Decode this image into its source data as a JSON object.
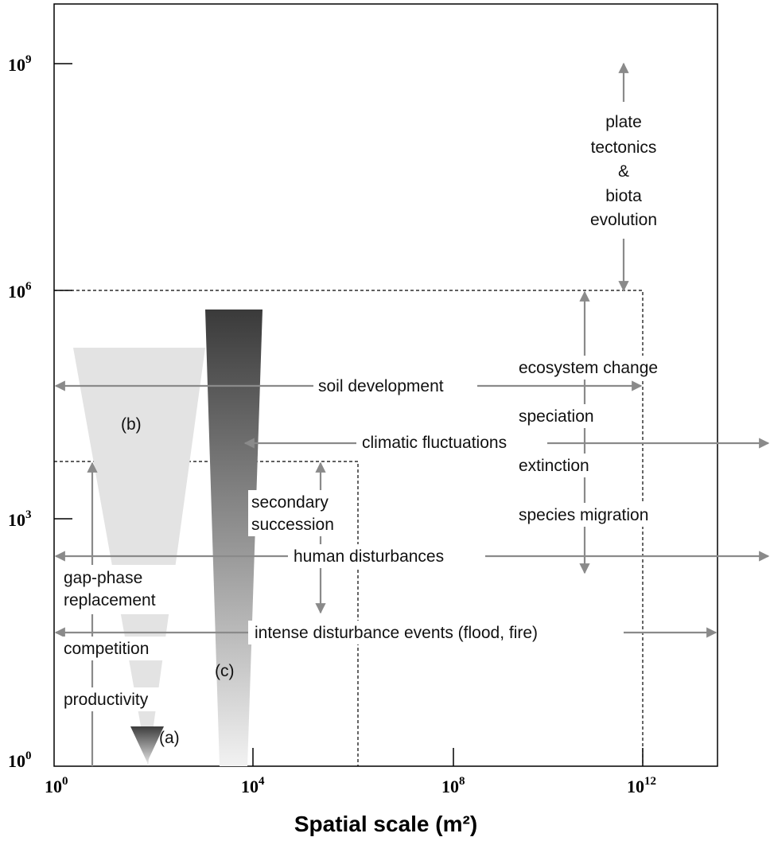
{
  "x_axis": {
    "title": "Spatial scale (m²)",
    "ticks": [
      {
        "base": "10",
        "exp": "0"
      },
      {
        "base": "10",
        "exp": "4"
      },
      {
        "base": "10",
        "exp": "8"
      },
      {
        "base": "10",
        "exp": "12"
      }
    ]
  },
  "y_axis": {
    "ticks": [
      {
        "base": "10",
        "exp": "0"
      },
      {
        "base": "10",
        "exp": "3"
      },
      {
        "base": "10",
        "exp": "6"
      },
      {
        "base": "10",
        "exp": "9"
      }
    ]
  },
  "labels": {
    "plate_line1": "plate",
    "plate_line2": "tectonics",
    "plate_line3": "&",
    "plate_line4": "biota",
    "plate_line5": "evolution",
    "ecosystem_change": "ecosystem change",
    "soil_development": "soil development",
    "speciation": "speciation",
    "climatic_fluctuations": "climatic fluctuations",
    "extinction": "extinction",
    "species_migration": "species migration",
    "secondary_line1": "secondary",
    "secondary_line2": "succession",
    "human_disturbances": "human disturbances",
    "gap_line1": "gap-phase",
    "gap_line2": "replacement",
    "intense_disturbance": "intense disturbance events (flood, fire)",
    "competition": "competition",
    "productivity": "productivity",
    "label_a": "(a)",
    "label_b": "(b)",
    "label_c": "(c)"
  }
}
